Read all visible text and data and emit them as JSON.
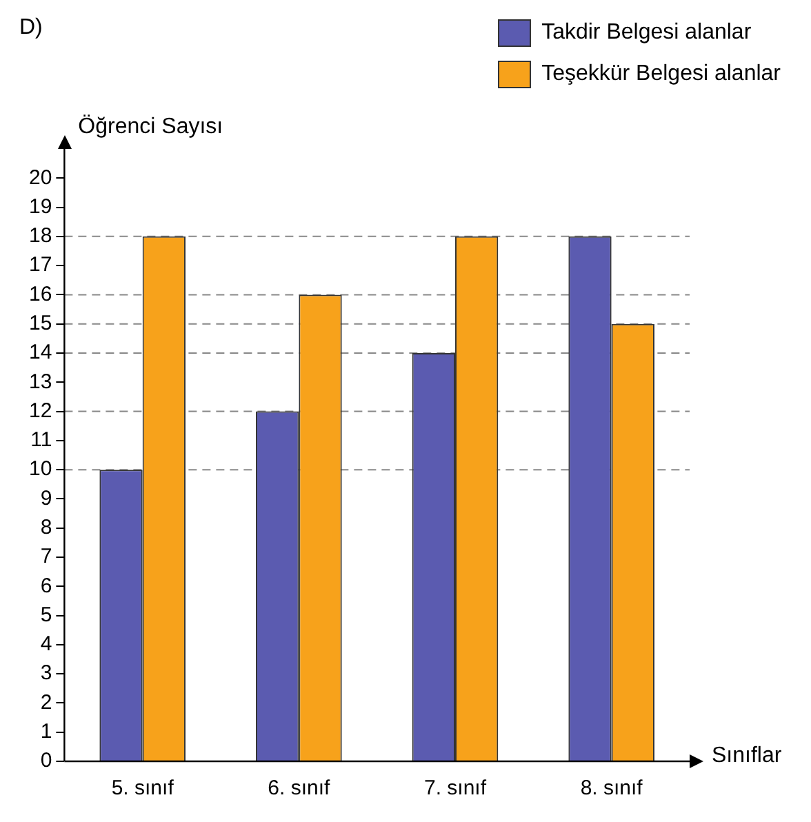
{
  "chart_data": {
    "type": "bar",
    "annotations": [
      "D)"
    ],
    "ylabel": "Öğrenci Sayısı",
    "xlabel": "Sınıflar",
    "categories": [
      "5. sınıf",
      "6. sınıf",
      "7. sınıf",
      "8. sınıf"
    ],
    "series": [
      {
        "name": "Takdir Belgesi alanlar",
        "color": "#5b5bb0",
        "values": [
          10,
          12,
          14,
          18
        ]
      },
      {
        "name": "Teşekkür Belgesi alanlar",
        "color": "#f7a21b",
        "values": [
          18,
          16,
          18,
          15
        ]
      }
    ],
    "ylim": [
      0,
      21
    ],
    "yticks": [
      0,
      1,
      2,
      3,
      4,
      5,
      6,
      7,
      8,
      9,
      10,
      11,
      12,
      13,
      14,
      15,
      16,
      17,
      18,
      19,
      20
    ],
    "grid": false,
    "legend": "top right",
    "ref_lines": [
      {
        "axis": "y",
        "value": 10,
        "line_style": "dashed",
        "color": "#888888"
      },
      {
        "axis": "y",
        "value": 12,
        "line_style": "dashed",
        "color": "#888888"
      },
      {
        "axis": "y",
        "value": 14,
        "line_style": "dashed",
        "color": "#888888"
      },
      {
        "axis": "y",
        "value": 15,
        "line_style": "dashed",
        "color": "#888888"
      },
      {
        "axis": "y",
        "value": 16,
        "line_style": "dashed",
        "color": "#888888"
      },
      {
        "axis": "y",
        "value": 18,
        "line_style": "dashed",
        "color": "#888888"
      }
    ]
  }
}
